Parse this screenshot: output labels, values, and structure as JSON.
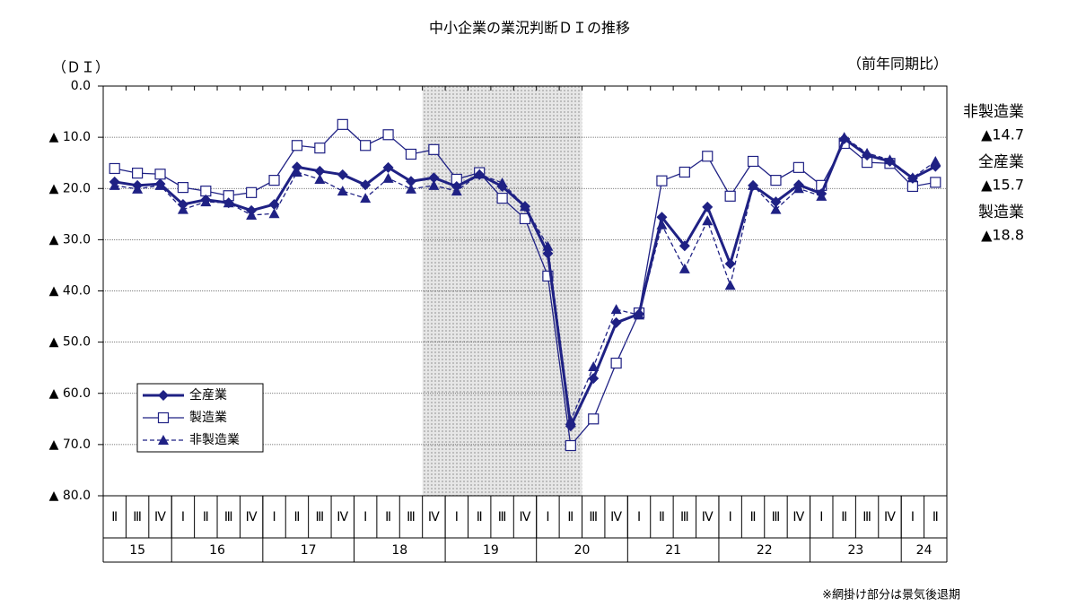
{
  "chart_data": {
    "type": "line",
    "title": "中小企業の業況判断ＤＩの推移",
    "y_label": "（ＤＩ）",
    "y_label_right": "（前年同期比）",
    "note": "※網掛け部分は景気後退期",
    "categories": [
      "Ⅱ",
      "Ⅲ",
      "Ⅳ",
      "Ⅰ",
      "Ⅱ",
      "Ⅲ",
      "Ⅳ",
      "Ⅰ",
      "Ⅱ",
      "Ⅲ",
      "Ⅳ",
      "Ⅰ",
      "Ⅱ",
      "Ⅲ",
      "Ⅳ",
      "Ⅰ",
      "Ⅱ",
      "Ⅲ",
      "Ⅳ",
      "Ⅰ",
      "Ⅱ",
      "Ⅲ",
      "Ⅳ",
      "Ⅰ",
      "Ⅱ",
      "Ⅲ",
      "Ⅳ",
      "Ⅰ",
      "Ⅱ",
      "Ⅲ",
      "Ⅳ",
      "Ⅰ",
      "Ⅱ",
      "Ⅲ",
      "Ⅳ",
      "Ⅰ",
      "Ⅱ"
    ],
    "years": [
      "15",
      "16",
      "17",
      "18",
      "19",
      "20",
      "21",
      "22",
      "23",
      "24"
    ],
    "shaded_range": [
      14,
      20
    ],
    "ylim": [
      -80,
      0
    ],
    "yticks": [
      {
        "value": 0,
        "label": "0.0"
      },
      {
        "value": -10,
        "label": "▲ 10.0"
      },
      {
        "value": -20,
        "label": "▲ 20.0"
      },
      {
        "value": -30,
        "label": "▲ 30.0"
      },
      {
        "value": -40,
        "label": "▲ 40.0"
      },
      {
        "value": -50,
        "label": "▲ 50.0"
      },
      {
        "value": -60,
        "label": "▲ 60.0"
      },
      {
        "value": -70,
        "label": "▲ 70.0"
      },
      {
        "value": -80,
        "label": "▲ 80.0"
      }
    ],
    "grid": true,
    "legend": "lower left",
    "series": [
      {
        "name": "全産業",
        "color": "#1f2184",
        "marker": "diamond",
        "dash": false,
        "width": 3,
        "values": [
          -18.7,
          -19.4,
          -19.1,
          -23.1,
          -22.2,
          -22.8,
          -24.3,
          -23.1,
          -15.8,
          -16.6,
          -17.3,
          -19.3,
          -15.9,
          -18.6,
          -17.9,
          -19.6,
          -17.3,
          -19.6,
          -23.5,
          -32.7,
          -66.4,
          -57.1,
          -46.2,
          -44.5,
          -25.6,
          -31.2,
          -23.6,
          -34.7,
          -19.4,
          -22.6,
          -19.3,
          -21.0,
          -10.3,
          -13.5,
          -14.7,
          -18.0,
          -15.7
        ]
      },
      {
        "name": "製造業",
        "color": "#1f2184",
        "marker": "square",
        "dash": false,
        "width": 1.3,
        "values": [
          -16.1,
          -17.0,
          -17.2,
          -19.8,
          -20.5,
          -21.4,
          -20.8,
          -18.4,
          -11.6,
          -12.1,
          -7.5,
          -11.6,
          -9.5,
          -13.3,
          -12.4,
          -18.2,
          -16.9,
          -21.9,
          -25.9,
          -37.1,
          -70.2,
          -65.0,
          -54.1,
          -44.3,
          -18.5,
          -16.8,
          -13.7,
          -21.5,
          -14.7,
          -18.4,
          -15.9,
          -19.4,
          -11.2,
          -14.9,
          -15.1,
          -19.6,
          -18.8
        ]
      },
      {
        "name": "非製造業",
        "color": "#1f2184",
        "marker": "triangle",
        "dash": true,
        "width": 1.3,
        "values": [
          -19.4,
          -20.1,
          -19.4,
          -24.1,
          -22.6,
          -22.8,
          -25.2,
          -24.9,
          -16.8,
          -18.2,
          -20.5,
          -21.9,
          -18.0,
          -20.1,
          -19.4,
          -20.5,
          -17.2,
          -18.9,
          -23.5,
          -31.3,
          -65.3,
          -54.8,
          -43.6,
          -44.7,
          -27.1,
          -35.7,
          -26.3,
          -38.9,
          -19.4,
          -24.1,
          -20.0,
          -21.5,
          -10.0,
          -13.1,
          -14.4,
          -17.9,
          -14.7
        ]
      }
    ],
    "annotations": [
      {
        "text": "非製造業",
        "value": -14.7,
        "value_label": "▲14.7"
      },
      {
        "text": "全産業",
        "value": -15.7,
        "value_label": "▲15.7"
      },
      {
        "text": "製造業",
        "value": -18.8,
        "value_label": "▲18.8"
      }
    ]
  }
}
